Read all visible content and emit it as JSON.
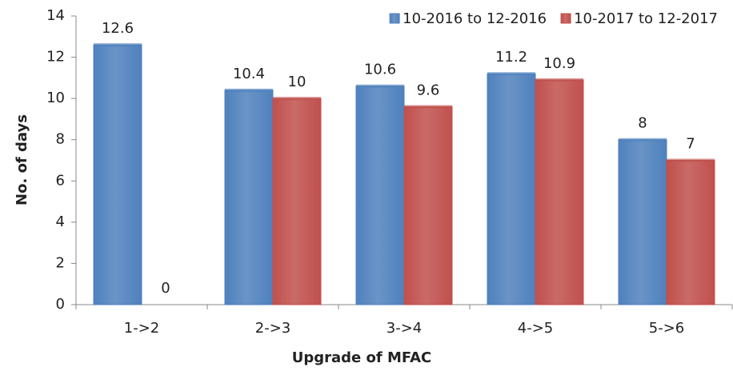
{
  "chart_data": {
    "type": "bar",
    "x_label": "Upgrade of MFAC",
    "y_label": "No. of days",
    "categories": [
      "1->2",
      "2->3",
      "3->4",
      "4->5",
      "5->6"
    ],
    "series": [
      {
        "name": "10-2016 to 12-2016",
        "color": "#4f81bd",
        "values": [
          12.6,
          10.4,
          10.6,
          11.2,
          8
        ]
      },
      {
        "name": "10-2017 to 12-2017",
        "color": "#c0504d",
        "values": [
          0,
          10,
          9.6,
          10.9,
          7
        ]
      }
    ],
    "ylim": [
      0,
      14
    ],
    "yticks": [
      0,
      2,
      4,
      6,
      8,
      10,
      12,
      14
    ],
    "grid": false,
    "legend": "upper right"
  }
}
